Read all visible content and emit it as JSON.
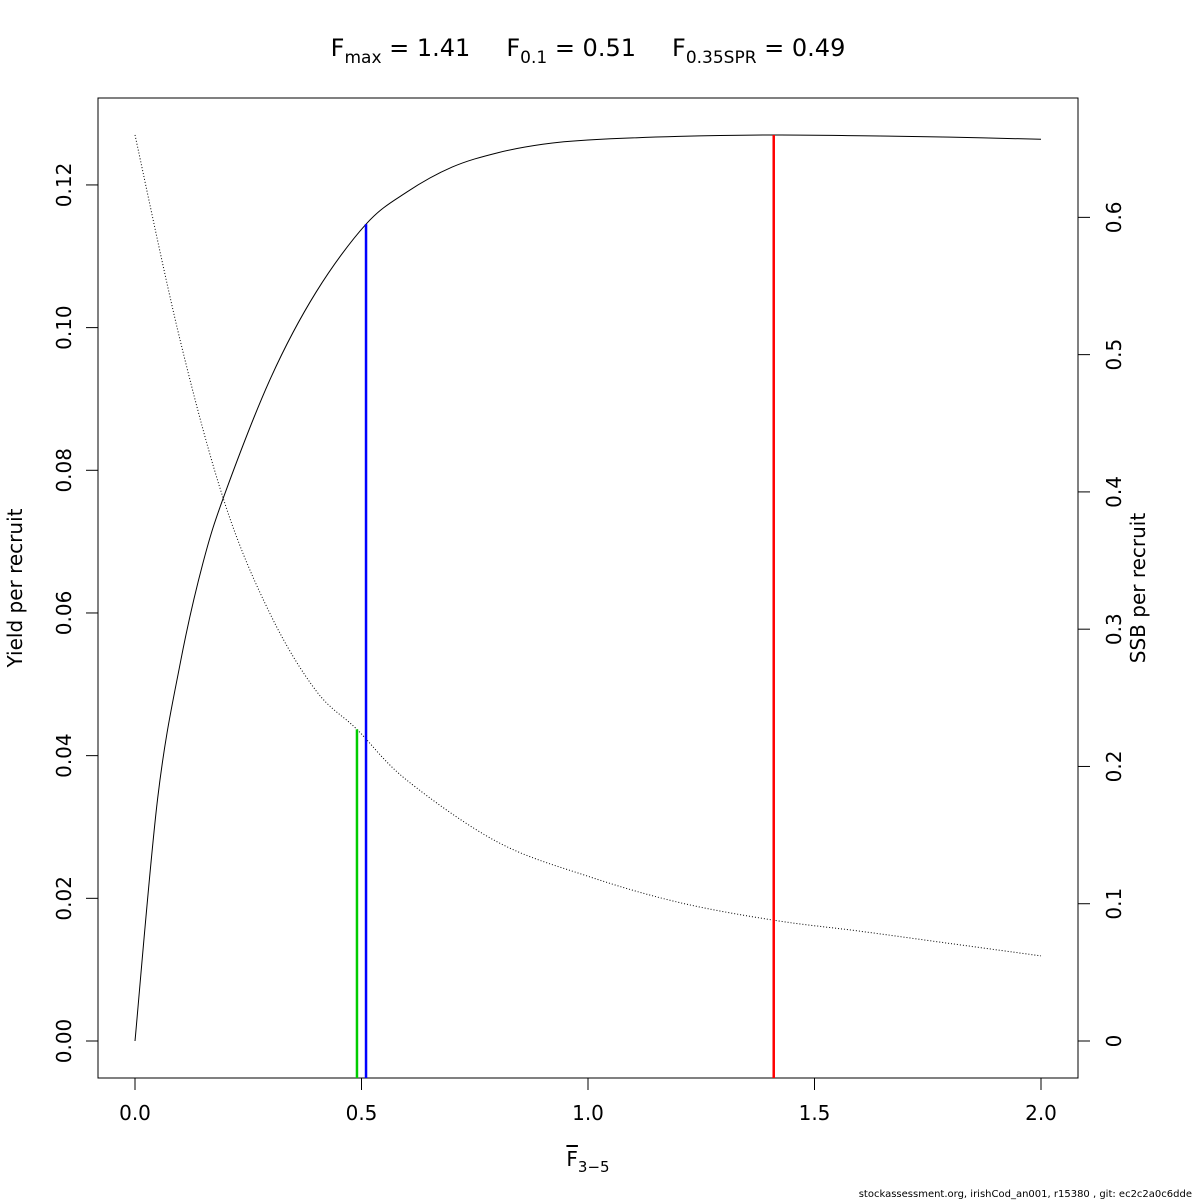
{
  "chart_data": {
    "type": "line",
    "title_parts": [
      {
        "base": "F",
        "sub": "max",
        "value": " = 1.41"
      },
      {
        "base": "F",
        "sub": "0.1",
        "value": " = 0.51"
      },
      {
        "base": "F",
        "sub": "0.35SPR",
        "value": " = 0.49"
      }
    ],
    "xlabel": {
      "base": "F",
      "sub": "3−5"
    },
    "ylabel_left": "Yield per recruit",
    "ylabel_right": "SSB per recruit",
    "footnote": "stockassessment.org, irishCod_an001, r15380 , git: ec2c2a0c6dde",
    "xlim": [
      0,
      2
    ],
    "ylim_left": [
      0,
      0.127
    ],
    "ylim_right": [
      0,
      0.66
    ],
    "x_ticks": [
      0,
      0.5,
      1,
      1.5,
      2
    ],
    "x_tick_labels": [
      "0.0",
      "0.5",
      "1.0",
      "1.5",
      "2.0"
    ],
    "y_left_ticks": [
      0,
      0.02,
      0.04,
      0.06,
      0.08,
      0.1,
      0.12
    ],
    "y_left_tick_labels": [
      "0.00",
      "0.02",
      "0.04",
      "0.06",
      "0.08",
      "0.10",
      "0.12"
    ],
    "y_right_ticks": [
      0,
      0.1,
      0.2,
      0.3,
      0.4,
      0.5,
      0.6
    ],
    "y_right_tick_labels": [
      "0",
      "0.1",
      "0.2",
      "0.3",
      "0.4",
      "0.5",
      "0.6"
    ],
    "grid": false,
    "series": [
      {
        "style": "solid",
        "axis": "left",
        "x": [
          0,
          0.05,
          0.1,
          0.15,
          0.2,
          0.3,
          0.4,
          0.51,
          0.6,
          0.7,
          0.8,
          0.9,
          1.0,
          1.2,
          1.41,
          1.6,
          1.8,
          2.0
        ],
        "y": [
          0.0,
          0.034,
          0.053,
          0.067,
          0.077,
          0.093,
          0.105,
          0.1145,
          0.119,
          0.1225,
          0.1245,
          0.1257,
          0.1263,
          0.1268,
          0.127,
          0.1269,
          0.1267,
          0.1264
        ]
      },
      {
        "style": "dotted",
        "axis": "right",
        "x": [
          0,
          0.1,
          0.2,
          0.3,
          0.4,
          0.49,
          0.6,
          0.8,
          1.0,
          1.2,
          1.41,
          1.6,
          1.8,
          2.0
        ],
        "y": [
          0.66,
          0.51,
          0.39,
          0.31,
          0.255,
          0.227,
          0.19,
          0.145,
          0.12,
          0.101,
          0.088,
          0.08,
          0.071,
          0.062
        ]
      }
    ],
    "reference_lines": [
      {
        "label": "Fmax",
        "x": 1.41,
        "color": "#ff0000",
        "axis": "left",
        "y_top": 0.127
      },
      {
        "label": "F0.1",
        "x": 0.51,
        "color": "#0000ff",
        "axis": "left",
        "y_top": 0.1145
      },
      {
        "label": "F0.35SPR",
        "x": 0.49,
        "color": "#00cc00",
        "axis": "right",
        "y_top": 0.227
      }
    ]
  }
}
